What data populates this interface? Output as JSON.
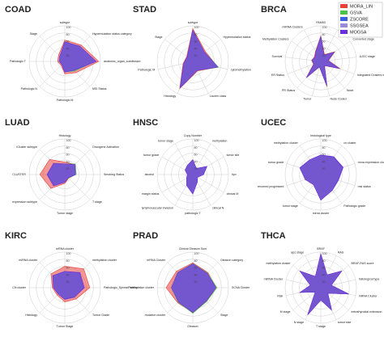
{
  "chart_data": [
    {
      "type": "radar",
      "title": "COAD",
      "categories": [
        "subtype",
        "Hypermutation status category",
        "anatomic_organ_subdivision",
        "MSI Status",
        "Pathologic M",
        "Pathologic N",
        "Pathologic T",
        "Stage"
      ],
      "rlim": [
        0,
        100
      ],
      "rticks": [
        20,
        40,
        60,
        80,
        100
      ],
      "series": [
        {
          "color": "#e8413c",
          "values": [
            60,
            65,
            95,
            45,
            35,
            15,
            20,
            25
          ]
        },
        {
          "color": "#4cc24c",
          "values": [
            55,
            60,
            85,
            38,
            30,
            12,
            15,
            20
          ]
        },
        {
          "color": "#3a5fe0",
          "values": [
            55,
            58,
            88,
            36,
            30,
            12,
            15,
            20
          ]
        },
        {
          "color": "#9b8ad8",
          "values": [
            54,
            58,
            86,
            35,
            30,
            12,
            16,
            20
          ]
        },
        {
          "color": "#6a2fd8",
          "values": [
            55,
            60,
            88,
            35,
            30,
            12,
            15,
            20
          ]
        }
      ]
    },
    {
      "type": "radar",
      "title": "STAD",
      "categories": [
        "subtype",
        "Hypermutation status",
        "cytomethylation",
        "Lauren class",
        "Histology",
        "Pathologic M",
        "Stage"
      ],
      "rlim": [
        0,
        100
      ],
      "rticks": [
        20,
        40,
        60,
        80,
        100
      ],
      "series": [
        {
          "color": "#e8413c",
          "values": [
            92,
            45,
            72,
            30,
            85,
            28,
            22
          ]
        },
        {
          "color": "#4cc24c",
          "values": [
            88,
            42,
            74,
            28,
            83,
            26,
            20
          ]
        },
        {
          "color": "#3a5fe0",
          "values": [
            87,
            40,
            70,
            28,
            82,
            26,
            20
          ]
        },
        {
          "color": "#9b8ad8",
          "values": [
            86,
            40,
            70,
            27,
            80,
            25,
            20
          ]
        },
        {
          "color": "#6a2fd8",
          "values": [
            88,
            42,
            72,
            28,
            82,
            26,
            20
          ]
        }
      ]
    },
    {
      "type": "radar",
      "title": "BRCA",
      "categories": [
        "PAM50",
        "CN Clusters",
        "Converted stage",
        "AJCC stage",
        "Integrated Clusters with PAM50",
        "Node",
        "Node Coded",
        "Tumor",
        "PR Status",
        "ER Status",
        "Survival",
        "Methylation Clusters",
        "miRNA Clusters"
      ],
      "rlim": [
        0,
        100
      ],
      "rticks": [
        20,
        40,
        60,
        80,
        100
      ],
      "series": [
        {
          "name": "MORA_LIN",
          "color": "#e8413c",
          "values": [
            72,
            22,
            48,
            22,
            58,
            16,
            74,
            16,
            62,
            22,
            26,
            22,
            32
          ]
        },
        {
          "name": "GSVA",
          "color": "#4cc24c",
          "values": [
            70,
            20,
            46,
            20,
            56,
            15,
            72,
            15,
            60,
            20,
            25,
            20,
            30
          ]
        },
        {
          "name": "ZSCORE",
          "color": "#3a5fe0",
          "values": [
            68,
            20,
            45,
            20,
            55,
            15,
            70,
            15,
            58,
            20,
            24,
            20,
            30
          ]
        },
        {
          "name": "SSGSEA",
          "color": "#9b8ad8",
          "values": [
            68,
            19,
            44,
            19,
            54,
            14,
            69,
            14,
            58,
            19,
            24,
            19,
            29
          ]
        },
        {
          "name": "MOGSA",
          "color": "#6a2fd8",
          "values": [
            70,
            20,
            45,
            20,
            55,
            15,
            70,
            15,
            60,
            20,
            25,
            20,
            30
          ]
        }
      ]
    },
    {
      "type": "radar",
      "title": "LUAD",
      "categories": [
        "Histology",
        "Oncogene Activation",
        "Smoking Status",
        "T stage",
        "Tumor stage",
        "expression subtype",
        "CLUSTER",
        "iCluster subtype"
      ],
      "rlim": [
        0,
        100
      ],
      "rticks": [
        20,
        40,
        60,
        80,
        100
      ],
      "series": [
        {
          "color": "#e8413c",
          "values": [
            35,
            40,
            30,
            15,
            25,
            55,
            70,
            60
          ]
        },
        {
          "color": "#4cc24c",
          "values": [
            30,
            42,
            32,
            14,
            20,
            40,
            45,
            40
          ]
        },
        {
          "color": "#3a5fe0",
          "values": [
            28,
            38,
            30,
            12,
            20,
            42,
            48,
            42
          ]
        },
        {
          "color": "#9b8ad8",
          "values": [
            28,
            38,
            30,
            12,
            20,
            40,
            46,
            40
          ]
        },
        {
          "color": "#6a2fd8",
          "values": [
            30,
            40,
            30,
            13,
            22,
            45,
            50,
            45
          ]
        }
      ]
    },
    {
      "type": "radar",
      "title": "HNSC",
      "categories": [
        "Copy Number",
        "methylation",
        "tumor site",
        "hpv",
        "clinical M",
        "clinical N",
        "pathologic T",
        "lymphovascular invasion",
        "margin status",
        "alcohol",
        "tumor grade",
        "tumor stage"
      ],
      "rlim": [
        0,
        100
      ],
      "rticks": [
        20,
        40,
        60,
        80,
        100
      ],
      "series": [
        {
          "color": "#e8413c",
          "values": [
            40,
            20,
            45,
            30,
            15,
            25,
            50,
            35,
            20,
            15,
            25,
            30
          ]
        },
        {
          "color": "#4cc24c",
          "values": [
            38,
            18,
            42,
            28,
            14,
            22,
            48,
            32,
            18,
            14,
            22,
            28
          ]
        },
        {
          "color": "#3a5fe0",
          "values": [
            40,
            20,
            44,
            30,
            15,
            24,
            52,
            34,
            20,
            15,
            24,
            30
          ]
        },
        {
          "color": "#9b8ad8",
          "values": [
            38,
            19,
            42,
            28,
            14,
            23,
            50,
            33,
            19,
            14,
            23,
            29
          ]
        },
        {
          "color": "#6a2fd8",
          "values": [
            42,
            20,
            46,
            30,
            15,
            25,
            55,
            35,
            20,
            15,
            25,
            30
          ]
        }
      ]
    },
    {
      "type": "radar",
      "title": "UCEC",
      "categories": [
        "histological type",
        "cn cluster",
        "mrna expression cluster",
        "msi status",
        "Pathologic grade",
        "mirna cluster",
        "tumor stage",
        "recurred progressed",
        "tumor grade",
        "methylation cluster"
      ],
      "rlim": [
        0,
        100
      ],
      "rticks": [
        20,
        40,
        60,
        80,
        100
      ],
      "series": [
        {
          "color": "#e8413c",
          "values": [
            55,
            60,
            65,
            50,
            55,
            70,
            35,
            45,
            60,
            50
          ]
        },
        {
          "color": "#4cc24c",
          "values": [
            52,
            58,
            62,
            48,
            52,
            68,
            33,
            43,
            58,
            48
          ]
        },
        {
          "color": "#3a5fe0",
          "values": [
            54,
            60,
            64,
            50,
            54,
            72,
            34,
            44,
            60,
            50
          ]
        },
        {
          "color": "#9b8ad8",
          "values": [
            53,
            58,
            62,
            48,
            53,
            70,
            33,
            44,
            58,
            49
          ]
        },
        {
          "color": "#6a2fd8",
          "values": [
            55,
            62,
            66,
            52,
            55,
            72,
            35,
            46,
            62,
            52
          ]
        }
      ]
    },
    {
      "type": "radar",
      "title": "KIRC",
      "categories": [
        "mRNA cluster",
        "methylation cluster",
        "Pathologic_SpreadPattern",
        "Tumor Grade",
        "Tumor Stage",
        "Histology",
        "CN cluster",
        "miRNA cluster"
      ],
      "rlim": [
        0,
        100
      ],
      "rticks": [
        20,
        40,
        60,
        80,
        100
      ],
      "series": [
        {
          "color": "#e8413c",
          "values": [
            60,
            75,
            70,
            45,
            40,
            30,
            35,
            55
          ]
        },
        {
          "color": "#4cc24c",
          "values": [
            45,
            55,
            50,
            35,
            30,
            25,
            30,
            45
          ]
        },
        {
          "color": "#3a5fe0",
          "values": [
            45,
            58,
            52,
            36,
            32,
            25,
            30,
            46
          ]
        },
        {
          "color": "#9b8ad8",
          "values": [
            44,
            56,
            50,
            35,
            30,
            25,
            30,
            45
          ]
        },
        {
          "color": "#6a2fd8",
          "values": [
            46,
            60,
            55,
            38,
            33,
            26,
            32,
            48
          ]
        }
      ]
    },
    {
      "type": "radar",
      "title": "PRAD",
      "categories": [
        "Clinical Gleason Sum",
        "Gleason category",
        "SCNA Cluster",
        "Stage",
        "Gleason",
        "mutation cluster",
        "methylation cluster",
        "mRNA Cluster"
      ],
      "rlim": [
        0,
        100
      ],
      "rticks": [
        20,
        40,
        60,
        80,
        100
      ],
      "series": [
        {
          "color": "#e8413c",
          "values": [
            70,
            60,
            65,
            55,
            70,
            60,
            75,
            65
          ]
        },
        {
          "color": "#4cc24c",
          "values": [
            68,
            58,
            68,
            55,
            72,
            58,
            60,
            60
          ]
        },
        {
          "color": "#3a5fe0",
          "values": [
            66,
            56,
            64,
            52,
            68,
            56,
            58,
            58
          ]
        },
        {
          "color": "#9b8ad8",
          "values": [
            66,
            56,
            64,
            52,
            68,
            56,
            58,
            58
          ]
        },
        {
          "color": "#6a2fd8",
          "values": [
            67,
            57,
            65,
            53,
            70,
            57,
            60,
            60
          ]
        }
      ]
    },
    {
      "type": "radar",
      "title": "THCA",
      "categories": [
        "BRAF",
        "RAS",
        "BRAF-RAS score",
        "histological type",
        "mRNA Cluster",
        "extrathyroidal extension",
        "tumor size",
        "T stage",
        "N stage",
        "M stage",
        "Risk",
        "miRNA Cluster",
        "methylation cluster",
        "ajcc stage"
      ],
      "rlim": [
        0,
        100
      ],
      "rticks": [
        20,
        40,
        60,
        80,
        100
      ],
      "series": [
        {
          "color": "#e8413c",
          "values": [
            95,
            40,
            75,
            30,
            80,
            25,
            70,
            35,
            85,
            20,
            60,
            30,
            75,
            35
          ]
        },
        {
          "color": "#4cc24c",
          "values": [
            93,
            38,
            73,
            28,
            78,
            24,
            68,
            33,
            83,
            19,
            58,
            28,
            73,
            33
          ]
        },
        {
          "color": "#3a5fe0",
          "values": [
            94,
            39,
            74,
            30,
            80,
            25,
            70,
            34,
            84,
            20,
            60,
            30,
            74,
            34
          ]
        },
        {
          "color": "#9b8ad8",
          "values": [
            93,
            38,
            73,
            29,
            78,
            24,
            69,
            33,
            83,
            19,
            59,
            29,
            73,
            33
          ]
        },
        {
          "color": "#6a2fd8",
          "values": [
            95,
            40,
            75,
            30,
            80,
            25,
            70,
            35,
            85,
            20,
            60,
            30,
            75,
            35
          ]
        }
      ]
    }
  ]
}
